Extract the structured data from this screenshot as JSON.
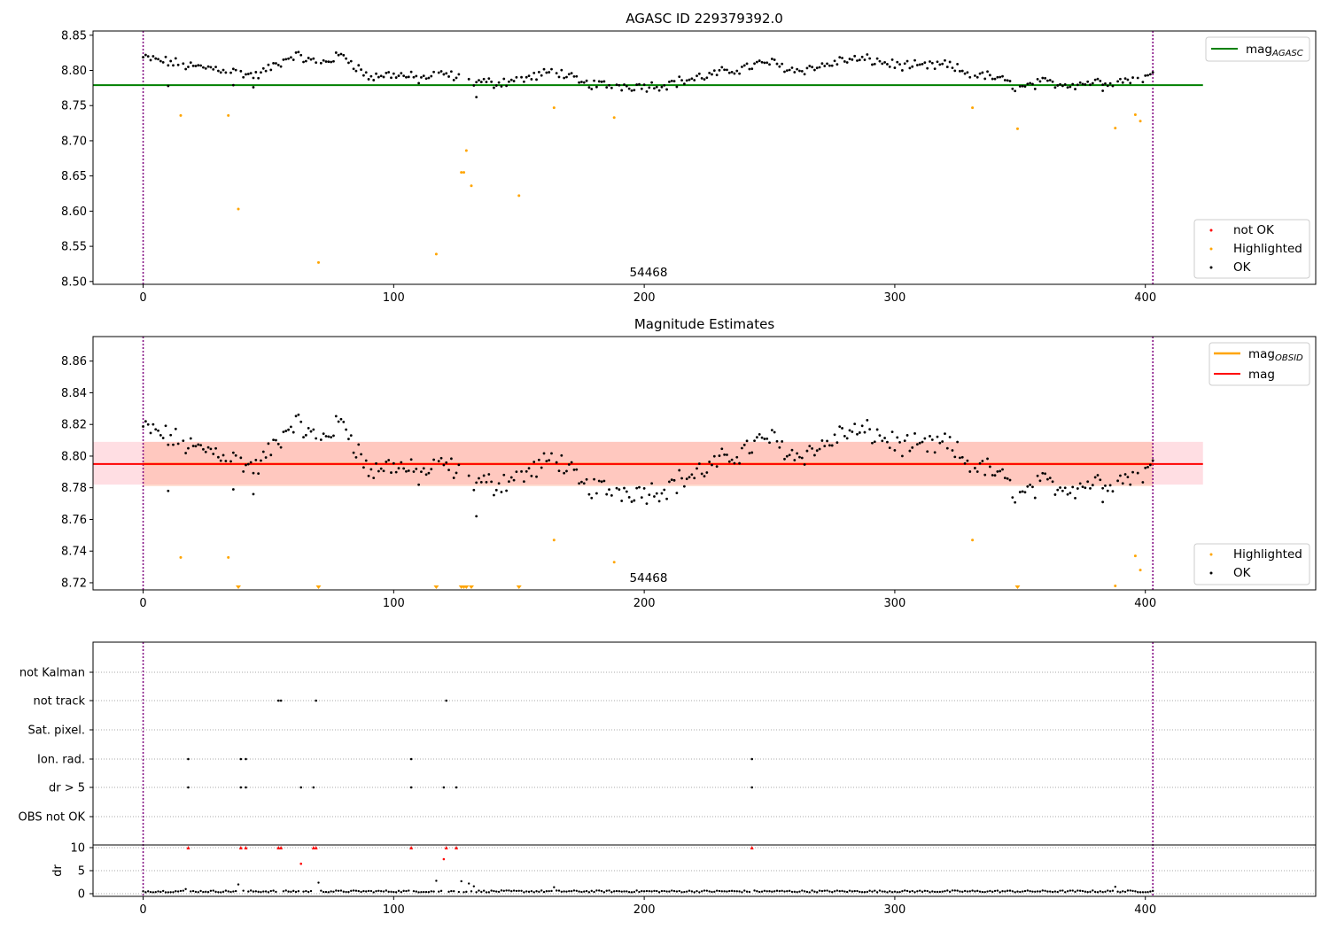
{
  "figure": {
    "top_title": "AGASC ID 229379392.0",
    "middle_title": "Magnitude Estimates"
  },
  "panel_top": {
    "annotation": "54468",
    "xlim": [
      -20,
      468
    ],
    "ylim": [
      8.496,
      8.856
    ],
    "yticks": [
      "8.50",
      "8.55",
      "8.60",
      "8.65",
      "8.70",
      "8.75",
      "8.80",
      "8.85"
    ],
    "xticks": [
      "0",
      "100",
      "200",
      "300",
      "400"
    ],
    "legend_upper": [
      {
        "label": "mag",
        "sub": "AGASC",
        "color": "#008000"
      }
    ],
    "legend_lower": [
      {
        "label": "not OK",
        "color": "#ff0000"
      },
      {
        "label": "Highlighted",
        "color": "#ffa500"
      },
      {
        "label": "OK",
        "color": "#000000"
      }
    ]
  },
  "panel_mid": {
    "annotation": "54468",
    "xlim": [
      -20,
      468
    ],
    "ylim": [
      8.7155,
      8.8755
    ],
    "yticks": [
      "8.72",
      "8.74",
      "8.76",
      "8.78",
      "8.80",
      "8.82",
      "8.84",
      "8.86"
    ],
    "xticks": [
      "0",
      "100",
      "200",
      "300",
      "400"
    ],
    "legend_upper": [
      {
        "label": "mag",
        "sub": "OBSID",
        "color": "#ffa500"
      },
      {
        "label": "mag",
        "sub": "",
        "color": "#ff0000"
      }
    ],
    "legend_lower": [
      {
        "label": "Highlighted",
        "color": "#ffa500"
      },
      {
        "label": "OK",
        "color": "#000000"
      }
    ]
  },
  "panel_flags": {
    "flag_labels": [
      "not Kalman",
      "not track",
      "Sat. pixel.",
      "Ion. rad.",
      "dr > 5",
      "OBS not OK"
    ],
    "dr_ylabel": "dr",
    "dr_yticks": [
      "0",
      "5",
      "10"
    ],
    "xticks": [
      "0",
      "100",
      "200",
      "300",
      "400"
    ]
  },
  "chart_data": {
    "type": "scatter",
    "x_range": [
      0,
      403
    ],
    "obs_boundaries": [
      0,
      403
    ],
    "mag_agasc": 8.779,
    "mag_obsid": 8.795,
    "mag_obsid_band": [
      8.781,
      8.809
    ],
    "mag": 8.795,
    "mag_band": [
      8.782,
      8.809
    ],
    "ok_trend": [
      [
        0,
        8.818
      ],
      [
        10,
        8.812
      ],
      [
        20,
        8.805
      ],
      [
        30,
        8.803
      ],
      [
        45,
        8.792
      ],
      [
        60,
        8.822
      ],
      [
        70,
        8.81
      ],
      [
        80,
        8.822
      ],
      [
        90,
        8.79
      ],
      [
        100,
        8.795
      ],
      [
        110,
        8.788
      ],
      [
        120,
        8.795
      ],
      [
        130,
        8.785
      ],
      [
        140,
        8.782
      ],
      [
        155,
        8.79
      ],
      [
        165,
        8.8
      ],
      [
        175,
        8.781
      ],
      [
        185,
        8.779
      ],
      [
        195,
        8.778
      ],
      [
        205,
        8.778
      ],
      [
        215,
        8.785
      ],
      [
        225,
        8.792
      ],
      [
        235,
        8.8
      ],
      [
        250,
        8.812
      ],
      [
        260,
        8.8
      ],
      [
        270,
        8.805
      ],
      [
        280,
        8.815
      ],
      [
        290,
        8.815
      ],
      [
        300,
        8.808
      ],
      [
        310,
        8.805
      ],
      [
        320,
        8.808
      ],
      [
        330,
        8.795
      ],
      [
        340,
        8.79
      ],
      [
        350,
        8.775
      ],
      [
        360,
        8.783
      ],
      [
        370,
        8.78
      ],
      [
        380,
        8.784
      ],
      [
        390,
        8.785
      ],
      [
        403,
        8.792
      ]
    ],
    "highlighted_top": [
      [
        15,
        8.736
      ],
      [
        34,
        8.736
      ],
      [
        38,
        8.603
      ],
      [
        70,
        8.527
      ],
      [
        117,
        8.539
      ],
      [
        127,
        8.655
      ],
      [
        128,
        8.655
      ],
      [
        129,
        8.686
      ],
      [
        131,
        8.636
      ],
      [
        150,
        8.622
      ],
      [
        164,
        8.747
      ],
      [
        188,
        8.733
      ],
      [
        331,
        8.747
      ],
      [
        349,
        8.717
      ],
      [
        388,
        8.718
      ],
      [
        396,
        8.737
      ],
      [
        398,
        8.728
      ]
    ],
    "highlighted_mid_points": [
      [
        15,
        8.736
      ],
      [
        34,
        8.736
      ],
      [
        164,
        8.747
      ],
      [
        188,
        8.733
      ],
      [
        331,
        8.747
      ],
      [
        388,
        8.718
      ],
      [
        396,
        8.737
      ],
      [
        398,
        8.728
      ]
    ],
    "highlighted_mid_below_axis_x": [
      38,
      70,
      117,
      127,
      128,
      129,
      131,
      150,
      349
    ],
    "flags": {
      "not track": [
        54,
        55,
        69,
        121
      ],
      "Ion. rad.": [
        18,
        39,
        41,
        107,
        243
      ],
      "dr > 5": [
        18,
        39,
        41,
        63,
        68,
        107,
        120,
        125,
        243
      ]
    },
    "dr_large": [
      [
        18,
        10
      ],
      [
        39,
        10
      ],
      [
        41,
        10
      ],
      [
        54,
        10
      ],
      [
        55,
        10
      ],
      [
        68,
        10
      ],
      [
        69,
        10
      ],
      [
        107,
        10
      ],
      [
        121,
        10
      ],
      [
        125,
        10
      ],
      [
        243,
        10
      ],
      [
        63,
        6.5
      ],
      [
        120,
        7.5
      ]
    ],
    "dr_small_spikes": [
      [
        17,
        1
      ],
      [
        38,
        2
      ],
      [
        70,
        2.4
      ],
      [
        117,
        2.8
      ],
      [
        127,
        2.7
      ],
      [
        130,
        2.2
      ],
      [
        132,
        1.6
      ],
      [
        164,
        1.4
      ],
      [
        388,
        1.5
      ]
    ]
  }
}
